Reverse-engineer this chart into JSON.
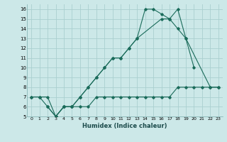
{
  "xlabel": "Humidex (Indice chaleur)",
  "bg_color": "#cce8e8",
  "grid_color": "#aacfcf",
  "line_color": "#1a6b5a",
  "xlim": [
    -0.5,
    23.5
  ],
  "ylim": [
    5,
    16.5
  ],
  "xticks": [
    0,
    1,
    2,
    3,
    4,
    5,
    6,
    7,
    8,
    9,
    10,
    11,
    12,
    13,
    14,
    15,
    16,
    17,
    18,
    19,
    20,
    21,
    22,
    23
  ],
  "yticks": [
    5,
    6,
    7,
    8,
    9,
    10,
    11,
    12,
    13,
    14,
    15,
    16
  ],
  "series1_x": [
    0,
    1,
    2,
    3,
    4,
    5,
    6,
    7,
    8,
    9,
    10,
    11,
    12,
    13,
    14,
    15,
    16,
    17,
    18,
    19,
    20
  ],
  "series1_y": [
    7,
    7,
    7,
    5,
    6,
    6,
    7,
    8,
    9,
    10,
    11,
    11,
    12,
    13,
    16,
    16,
    15.5,
    15,
    16,
    13,
    10
  ],
  "series2_x": [
    0,
    1,
    2,
    3,
    4,
    5,
    6,
    7,
    8,
    9,
    10,
    11,
    12,
    13,
    16,
    17,
    18,
    19,
    22,
    23
  ],
  "series2_y": [
    7,
    7,
    6,
    5,
    6,
    6,
    7,
    8,
    9,
    10,
    11,
    11,
    12,
    13,
    15,
    15,
    14,
    13,
    8,
    8
  ],
  "series3_x": [
    2,
    3,
    4,
    5,
    6,
    7,
    8,
    9,
    10,
    11,
    12,
    13,
    14,
    15,
    16,
    17,
    18,
    19,
    20,
    21,
    22,
    23
  ],
  "series3_y": [
    6,
    5,
    6,
    6,
    6,
    6,
    7,
    7,
    7,
    7,
    7,
    7,
    7,
    7,
    7,
    7,
    8,
    8,
    8,
    8,
    8,
    8
  ]
}
